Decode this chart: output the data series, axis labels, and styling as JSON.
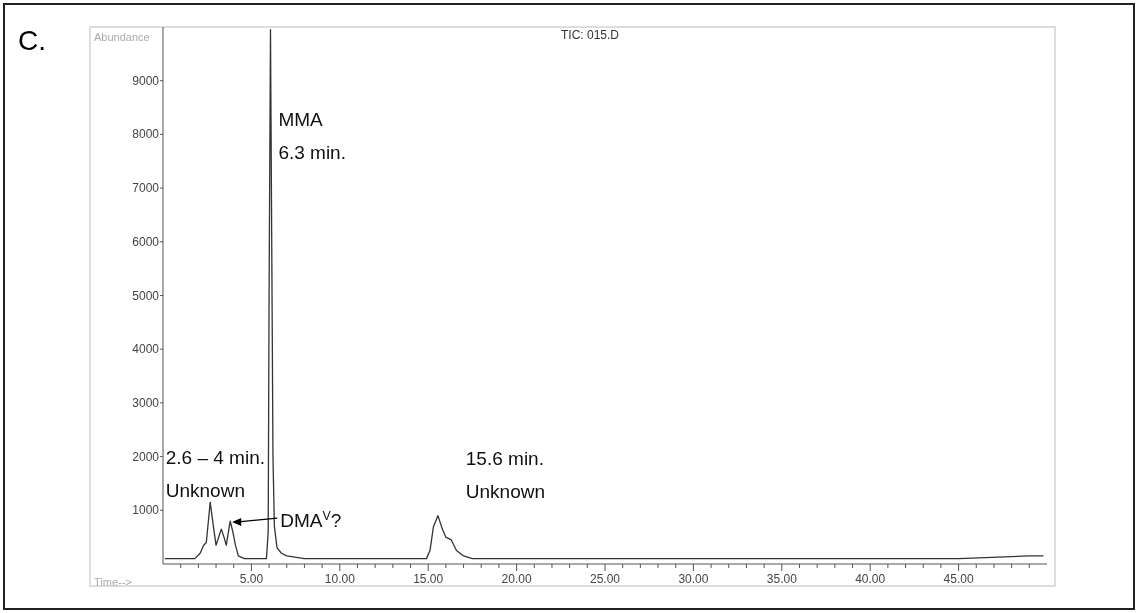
{
  "chart_data": {
    "type": "line",
    "title": "TIC: 015.D",
    "xlabel": "Time-->",
    "ylabel": "Abundance",
    "annotations": [
      "C.",
      {
        "text": "MMA\n6.3 min.",
        "x": 6.3,
        "y": 8300
      },
      {
        "text": "2.6 – 4 min.\nUnknown",
        "x": 2.7,
        "y": 1150
      },
      {
        "text": "DMA$^{V}$?",
        "x": 3.8,
        "y": 800
      },
      {
        "text": "15.6 min.\nUnknown",
        "x": 15.6,
        "y": 900
      }
    ],
    "x": [
      0.1,
      1,
      1.8,
      2.1,
      2.3,
      2.45,
      2.67,
      2.85,
      3.0,
      3.15,
      3.3,
      3.45,
      3.58,
      3.7,
      3.8,
      3.95,
      4.1,
      4.26,
      4.6,
      5.0,
      5.5,
      5.85,
      5.95,
      6.0,
      6.08,
      6.15,
      6.22,
      6.3,
      6.45,
      6.7,
      7.0,
      8,
      10,
      12,
      14,
      14.9,
      15.1,
      15.3,
      15.55,
      15.8,
      16.0,
      16.3,
      16.6,
      17.0,
      17.5,
      20,
      25,
      30,
      35,
      40,
      45,
      49,
      49.8
    ],
    "series": [
      {
        "color": "#333333",
        "values": [
          100,
          100,
          100,
          200,
          350,
          400,
          1150,
          700,
          350,
          500,
          650,
          500,
          350,
          600,
          800,
          600,
          350,
          150,
          100,
          100,
          100,
          100,
          600,
          5000,
          9950,
          6000,
          2000,
          700,
          300,
          200,
          150,
          100,
          100,
          100,
          100,
          100,
          250,
          700,
          900,
          650,
          500,
          450,
          250,
          150,
          100,
          100,
          100,
          100,
          100,
          100,
          100,
          150,
          150
        ]
      }
    ],
    "xlim": [
      0,
      50
    ],
    "ylim": [
      0,
      10000
    ],
    "xticks": [
      {
        "value": 1,
        "label": null
      },
      {
        "value": 2,
        "label": null
      },
      {
        "value": 3,
        "label": null
      },
      {
        "value": 4,
        "label": null
      },
      {
        "value": 5,
        "label": "5.00"
      },
      {
        "value": 6,
        "label": null
      },
      {
        "value": 7,
        "label": null
      },
      {
        "value": 8,
        "label": null
      },
      {
        "value": 9,
        "label": null
      },
      {
        "value": 10,
        "label": "10.00"
      },
      {
        "value": 11,
        "label": null
      },
      {
        "value": 12,
        "label": null
      },
      {
        "value": 13,
        "label": null
      },
      {
        "value": 14,
        "label": null
      },
      {
        "value": 15,
        "label": "15.00"
      },
      {
        "value": 16,
        "label": null
      },
      {
        "value": 17,
        "label": null
      },
      {
        "value": 18,
        "label": null
      },
      {
        "value": 19,
        "label": null
      },
      {
        "value": 20,
        "label": "20.00"
      },
      {
        "value": 21,
        "label": null
      },
      {
        "value": 22,
        "label": null
      },
      {
        "value": 23,
        "label": null
      },
      {
        "value": 24,
        "label": null
      },
      {
        "value": 25,
        "label": "25.00"
      },
      {
        "value": 26,
        "label": null
      },
      {
        "value": 27,
        "label": null
      },
      {
        "value": 28,
        "label": null
      },
      {
        "value": 29,
        "label": null
      },
      {
        "value": 30,
        "label": "30.00"
      },
      {
        "value": 31,
        "label": null
      },
      {
        "value": 32,
        "label": null
      },
      {
        "value": 33,
        "label": null
      },
      {
        "value": 34,
        "label": null
      },
      {
        "value": 35,
        "label": "35.00"
      },
      {
        "value": 36,
        "label": null
      },
      {
        "value": 37,
        "label": null
      },
      {
        "value": 38,
        "label": null
      },
      {
        "value": 39,
        "label": null
      },
      {
        "value": 40,
        "label": "40.00"
      },
      {
        "value": 41,
        "label": null
      },
      {
        "value": 42,
        "label": null
      },
      {
        "value": 43,
        "label": null
      },
      {
        "value": 44,
        "label": null
      },
      {
        "value": 45,
        "label": "45.00"
      },
      {
        "value": 46,
        "label": null
      },
      {
        "value": 47,
        "label": null
      },
      {
        "value": 48,
        "label": null
      },
      {
        "value": 49,
        "label": null
      }
    ],
    "yticks": [
      1000,
      2000,
      3000,
      4000,
      5000,
      6000,
      7000,
      8000,
      9000
    ]
  }
}
